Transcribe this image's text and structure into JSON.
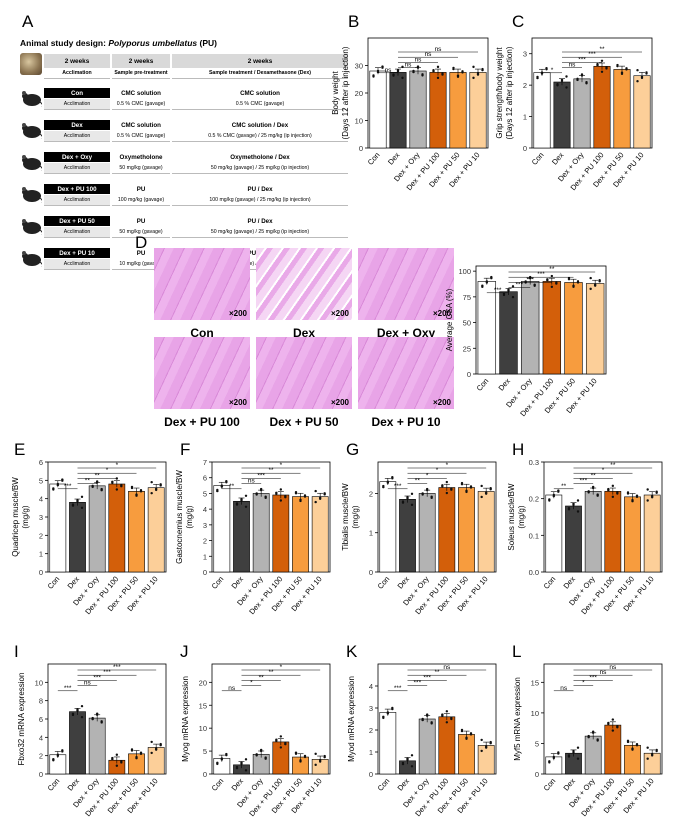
{
  "panel_labels": [
    "A",
    "B",
    "C",
    "D",
    "E",
    "F",
    "G",
    "H",
    "I",
    "J",
    "K",
    "L"
  ],
  "design": {
    "title_prefix": "Animal study design: ",
    "title_italic": "Polyporus umbellatus",
    "title_suffix": " (PU)",
    "header": [
      "2 weeks",
      "2 weeks",
      "2 weeks"
    ],
    "subheader": [
      "Acclimation",
      "Sample pre-treatment",
      "Sample treatment / Dexamethasone (Dex)"
    ],
    "groups": [
      {
        "name": "Con",
        "pre": "CMC solution",
        "treat": "CMC solution",
        "acc": "Acclimation",
        "pre_detail": "0.5 % CMC (gavage)",
        "treat_detail": "0.5 % CMC (gavage)"
      },
      {
        "name": "Dex",
        "pre": "CMC solution",
        "treat": "CMC solution / Dex",
        "acc": "Acclimation",
        "pre_detail": "0.5 % CMC (gavage)",
        "treat_detail": "0.5 % CMC (gavage) / 25 mg/kg (ip injection)"
      },
      {
        "name": "Dex + Oxy",
        "pre": "Oxymetholone",
        "treat": "Oxymetholone / Dex",
        "acc": "Acclimation",
        "pre_detail": "50 mg/kg (gavage)",
        "treat_detail": "50 mg/kg (gavage) / 25 mg/kg (ip injection)"
      },
      {
        "name": "Dex + PU 100",
        "pre": "PU",
        "treat": "PU / Dex",
        "acc": "Acclimation",
        "pre_detail": "100 mg/kg (gavage)",
        "treat_detail": "100 mg/kg (gavage) / 25 mg/kg (ip injection)"
      },
      {
        "name": "Dex + PU 50",
        "pre": "PU",
        "treat": "PU / Dex",
        "acc": "Acclimation",
        "pre_detail": "50 mg/kg (gavage)",
        "treat_detail": "50 mg/kg (gavage) / 25 mg/kg (ip injection)"
      },
      {
        "name": "Dex + PU 10",
        "pre": "PU",
        "treat": "PU / Dex",
        "acc": "Acclimation",
        "pre_detail": "10 mg/kg (gavage)",
        "treat_detail": "10 mg/kg (gavage) / 25 mg/kg (ip injection)"
      }
    ]
  },
  "histology": {
    "magnification": "×200",
    "names": [
      "Con",
      "Dex",
      "Dex + Oxy",
      "Dex + PU 100",
      "Dex + PU 50",
      "Dex + PU 10"
    ]
  },
  "colors": {
    "Con": "#ffffff",
    "Dex": "#3f3f3f",
    "Dex + Oxy": "#b3b3b3",
    "Dex + PU 100": "#d35f0a",
    "Dex + PU 50": "#f79c3e",
    "Dex + PU 10": "#fccf99",
    "histo": "#e7a2e6"
  },
  "chart_data": [
    {
      "panel": "B",
      "type": "bar",
      "categories": [
        "Con",
        "Dex",
        "Dex + Oxy",
        "Dex + PU 100",
        "Dex + PU 50",
        "Dex + PU 10"
      ],
      "values": [
        28,
        27.5,
        28,
        27.5,
        27.5,
        27.5
      ],
      "ylabel": "Body weight\n(Days 12 after ip injection)",
      "ylim": [
        0,
        40
      ],
      "yticks": [
        "0",
        "10",
        "20",
        "30"
      ],
      "sig": [
        "ns",
        "ns",
        "ns",
        "ns",
        "ns"
      ]
    },
    {
      "panel": "C",
      "type": "bar",
      "categories": [
        "Con",
        "Dex",
        "Dex + Oxy",
        "Dex + PU 100",
        "Dex + PU 50",
        "Dex + PU 10"
      ],
      "values": [
        2.4,
        2.1,
        2.2,
        2.6,
        2.5,
        2.3
      ],
      "ylabel": "Grip strength/body weight\n(Days 12 after ip injection)",
      "ylim": [
        0,
        3.5
      ],
      "yticks": [
        "0",
        "1",
        "2",
        "3"
      ],
      "sig": [
        "*",
        "ns",
        "***",
        "***",
        "**"
      ]
    },
    {
      "panel": "D",
      "type": "bar",
      "categories": [
        "Con",
        "Dex",
        "Dex + Oxy",
        "Dex + PU 100",
        "Dex + PU 50",
        "Dex + PU 10"
      ],
      "values": [
        90,
        80,
        90,
        90,
        89,
        88
      ],
      "ylabel": "Average CSA (%)",
      "ylim": [
        0,
        105
      ],
      "yticks": [
        "0",
        "25",
        "50",
        "75",
        "100"
      ],
      "sig": [
        "***",
        "***",
        "***",
        "***",
        "**"
      ]
    },
    {
      "panel": "E",
      "type": "bar",
      "categories": [
        "Con",
        "Dex",
        "Dex + Oxy",
        "Dex + PU 100",
        "Dex + PU 50",
        "Dex + PU 10"
      ],
      "values": [
        4.8,
        3.8,
        4.7,
        4.8,
        4.4,
        4.6
      ],
      "ylabel": "Quadricep muscle/BW\n(mg/g)",
      "ylim": [
        0,
        6
      ],
      "yticks": [
        "0",
        "1",
        "2",
        "3",
        "4",
        "5",
        "6"
      ],
      "sig": [
        "***",
        "**",
        "**",
        "*",
        "*"
      ]
    },
    {
      "panel": "F",
      "type": "bar",
      "categories": [
        "Con",
        "Dex",
        "Dex + Oxy",
        "Dex + PU 100",
        "Dex + PU 50",
        "Dex + PU 10"
      ],
      "values": [
        5.5,
        4.5,
        5.0,
        4.9,
        4.8,
        4.8
      ],
      "ylabel": "Gastocnemius muscle/BW\n(mg/g)",
      "ylim": [
        0,
        7
      ],
      "yticks": [
        "0",
        "1",
        "2",
        "3",
        "4",
        "5",
        "6",
        "7"
      ],
      "sig": [
        "**",
        "ns",
        "***",
        "**",
        "*"
      ]
    },
    {
      "panel": "G",
      "type": "bar",
      "categories": [
        "Con",
        "Dex",
        "Dex + Oxy",
        "Dex + PU 100",
        "Dex + PU 50",
        "Dex + PU 10"
      ],
      "values": [
        2.3,
        1.85,
        2.0,
        2.15,
        2.15,
        2.05
      ],
      "ylabel": "Tibialis muscle/BW\n(mg/g)",
      "ylim": [
        0,
        2.8
      ],
      "yticks": [
        "0",
        "1",
        "2"
      ],
      "sig": [
        "***",
        "**",
        "*",
        "*",
        "*"
      ]
    },
    {
      "panel": "H",
      "type": "bar",
      "categories": [
        "Con",
        "Dex",
        "Dex + Oxy",
        "Dex + PU 100",
        "Dex + PU 50",
        "Dex + PU 10"
      ],
      "values": [
        0.21,
        0.18,
        0.22,
        0.22,
        0.205,
        0.21
      ],
      "ylabel": "Soleus muscle/BW\n(mg/g)",
      "ylim": [
        0,
        0.3
      ],
      "yticks": [
        "0.0",
        "0.1",
        "0.2",
        "0.3"
      ],
      "sig": [
        "**",
        "***",
        "**",
        "*",
        "**"
      ]
    },
    {
      "panel": "I",
      "type": "bar",
      "categories": [
        "Con",
        "Dex",
        "Dex + Oxy",
        "Dex + PU 100",
        "Dex + PU 50",
        "Dex + PU 10"
      ],
      "values": [
        2.1,
        6.8,
        6.1,
        1.5,
        2.2,
        2.9
      ],
      "ylabel": "Fbxo32 mRNA expression",
      "ylim": [
        0,
        12
      ],
      "yticks": [
        "0",
        "2",
        "4",
        "6",
        "8",
        "10"
      ],
      "sig": [
        "***",
        "ns",
        "***",
        "***",
        "***"
      ]
    },
    {
      "panel": "J",
      "type": "bar",
      "categories": [
        "Con",
        "Dex",
        "Dex + Oxy",
        "Dex + PU 100",
        "Dex + PU 50",
        "Dex + PU 10"
      ],
      "values": [
        3.4,
        2.0,
        4.3,
        7.0,
        3.7,
        3.2
      ],
      "ylabel": "Myog mRNA expression",
      "ylim": [
        0,
        24
      ],
      "yticks": [
        "0",
        "5",
        "10",
        "15",
        "20"
      ],
      "sig": [
        "ns",
        "*",
        "**",
        "**",
        "*"
      ]
    },
    {
      "panel": "K",
      "type": "bar",
      "categories": [
        "Con",
        "Dex",
        "Dex + Oxy",
        "Dex + PU 100",
        "Dex + PU 50",
        "Dex + PU 10"
      ],
      "values": [
        2.8,
        0.6,
        2.5,
        2.6,
        1.8,
        1.3
      ],
      "ylabel": "Myod mRNA expression",
      "ylim": [
        0,
        5
      ],
      "yticks": [
        "0",
        "1",
        "2",
        "3",
        "4"
      ],
      "sig": [
        "***",
        "***",
        "***",
        "**",
        "ns"
      ]
    },
    {
      "panel": "L",
      "type": "bar",
      "categories": [
        "Con",
        "Dex",
        "Dex + Oxy",
        "Dex + PU 100",
        "Dex + PU 50",
        "Dex + PU 10"
      ],
      "values": [
        2.8,
        3.4,
        6.2,
        8.0,
        4.7,
        3.4
      ],
      "ylabel": "Myf5 mRNA expression",
      "ylim": [
        0,
        18
      ],
      "yticks": [
        "0",
        "5",
        "10",
        "15"
      ],
      "sig": [
        "ns",
        "*",
        "***",
        "ns",
        "ns"
      ]
    }
  ]
}
